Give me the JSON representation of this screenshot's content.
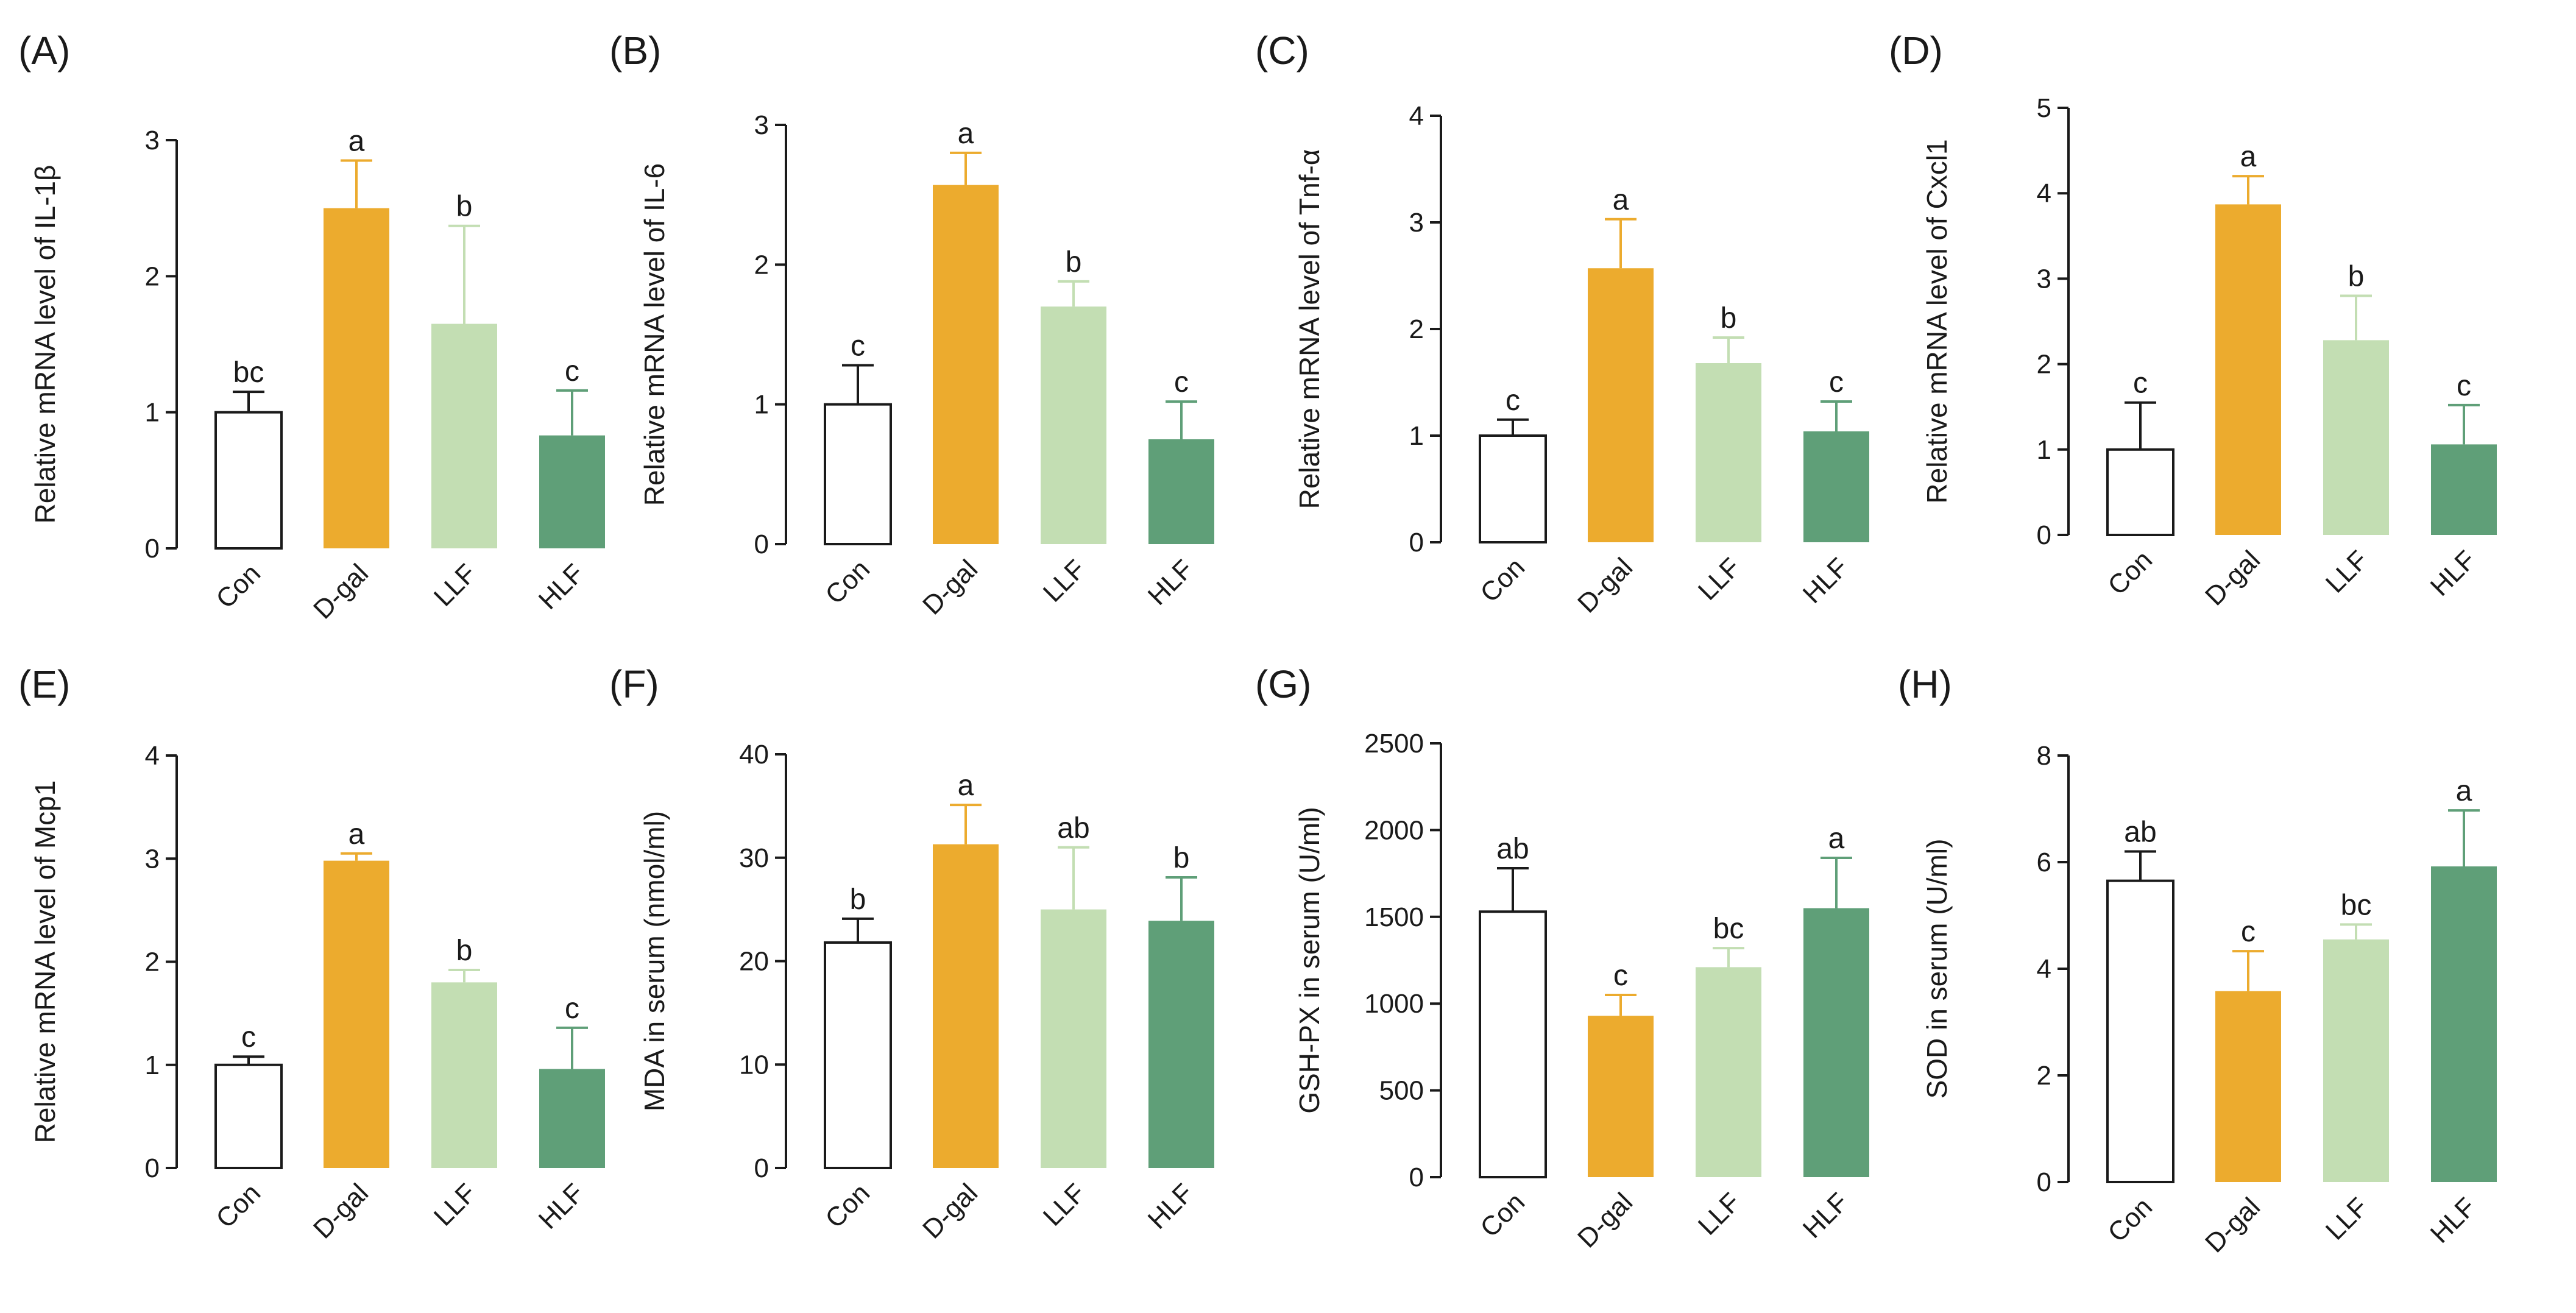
{
  "figure": {
    "colors": {
      "axis": "#1a1a1a"
    }
  },
  "chart_data": [
    {
      "panel_label": "(A)",
      "type": "bar",
      "categories": [
        "Con",
        "D-gal",
        "LLF",
        "HLF"
      ],
      "values": [
        1.0,
        2.5,
        1.65,
        0.83
      ],
      "errors": [
        0.15,
        0.35,
        0.72,
        0.33
      ],
      "sig_letters": [
        "bc",
        "a",
        "b",
        "c"
      ],
      "bar_colors": [
        "#ffffff",
        "#ecab2e",
        "#c3deb3",
        "#5f9f78"
      ],
      "ylabel": "Relative mRNA level of IL-1β",
      "xlabel": "",
      "ylim": [
        0,
        3
      ],
      "yticks": [
        0,
        1,
        2,
        3
      ],
      "grid": false,
      "legend": "none"
    },
    {
      "panel_label": "(B)",
      "type": "bar",
      "categories": [
        "Con",
        "D-gal",
        "LLF",
        "HLF"
      ],
      "values": [
        1.0,
        2.57,
        1.7,
        0.75
      ],
      "errors": [
        0.28,
        0.23,
        0.18,
        0.27
      ],
      "sig_letters": [
        "c",
        "a",
        "b",
        "c"
      ],
      "bar_colors": [
        "#ffffff",
        "#ecab2e",
        "#c3deb3",
        "#5f9f78"
      ],
      "ylabel": "Relative mRNA level of IL-6",
      "xlabel": "",
      "ylim": [
        0,
        3
      ],
      "yticks": [
        0,
        1,
        2,
        3
      ],
      "grid": false,
      "legend": "none"
    },
    {
      "panel_label": "(C)",
      "type": "bar",
      "categories": [
        "Con",
        "D-gal",
        "LLF",
        "HLF"
      ],
      "values": [
        1.0,
        2.57,
        1.68,
        1.04
      ],
      "errors": [
        0.15,
        0.46,
        0.24,
        0.28
      ],
      "sig_letters": [
        "c",
        "a",
        "b",
        "c"
      ],
      "bar_colors": [
        "#ffffff",
        "#ecab2e",
        "#c3deb3",
        "#5f9f78"
      ],
      "ylabel": "Relative mRNA level of Tnf-α",
      "xlabel": "",
      "ylim": [
        0,
        4
      ],
      "yticks": [
        0,
        1,
        2,
        3,
        4
      ],
      "grid": false,
      "legend": "none"
    },
    {
      "panel_label": "(D)",
      "type": "bar",
      "categories": [
        "Con",
        "D-gal",
        "LLF",
        "HLF"
      ],
      "values": [
        1.0,
        3.87,
        2.28,
        1.06
      ],
      "errors": [
        0.55,
        0.33,
        0.52,
        0.46
      ],
      "sig_letters": [
        "c",
        "a",
        "b",
        "c"
      ],
      "bar_colors": [
        "#ffffff",
        "#ecab2e",
        "#c3deb3",
        "#5f9f78"
      ],
      "ylabel": "Relative mRNA level of Cxcl1",
      "xlabel": "",
      "ylim": [
        0,
        5
      ],
      "yticks": [
        0,
        1,
        2,
        3,
        4,
        5
      ],
      "grid": false,
      "legend": "none"
    },
    {
      "panel_label": "(E)",
      "type": "bar",
      "categories": [
        "Con",
        "D-gal",
        "LLF",
        "HLF"
      ],
      "values": [
        1.0,
        2.98,
        1.8,
        0.96
      ],
      "errors": [
        0.08,
        0.07,
        0.12,
        0.4
      ],
      "sig_letters": [
        "c",
        "a",
        "b",
        "c"
      ],
      "bar_colors": [
        "#ffffff",
        "#ecab2e",
        "#c3deb3",
        "#5f9f78"
      ],
      "ylabel": "Relative mRNA level of Mcp1",
      "xlabel": "",
      "ylim": [
        0,
        4
      ],
      "yticks": [
        0,
        1,
        2,
        3,
        4
      ],
      "grid": false,
      "legend": "none"
    },
    {
      "panel_label": "(F)",
      "type": "bar",
      "categories": [
        "Con",
        "D-gal",
        "LLF",
        "HLF"
      ],
      "values": [
        21.8,
        31.3,
        25.0,
        23.9
      ],
      "errors": [
        2.3,
        3.8,
        6.0,
        4.2
      ],
      "sig_letters": [
        "b",
        "a",
        "ab",
        "b"
      ],
      "bar_colors": [
        "#ffffff",
        "#ecab2e",
        "#c3deb3",
        "#5f9f78"
      ],
      "ylabel": "MDA in serum  (nmol/ml)",
      "xlabel": "",
      "ylim": [
        0,
        40
      ],
      "yticks": [
        0,
        10,
        20,
        30,
        40
      ],
      "grid": false,
      "legend": "none"
    },
    {
      "panel_label": "(G)",
      "type": "bar",
      "categories": [
        "Con",
        "D-gal",
        "LLF",
        "HLF"
      ],
      "values": [
        1530,
        930,
        1210,
        1550
      ],
      "errors": [
        250,
        120,
        110,
        290
      ],
      "sig_letters": [
        "ab",
        "c",
        "bc",
        "a"
      ],
      "bar_colors": [
        "#ffffff",
        "#ecab2e",
        "#c3deb3",
        "#5f9f78"
      ],
      "ylabel": "GSH-PX in serum  (U/ml)",
      "xlabel": "",
      "ylim": [
        0,
        2500
      ],
      "yticks": [
        0,
        500,
        1000,
        1500,
        2000,
        2500
      ],
      "grid": false,
      "legend": "none"
    },
    {
      "panel_label": "(H)",
      "type": "bar",
      "categories": [
        "Con",
        "D-gal",
        "LLF",
        "HLF"
      ],
      "values": [
        5.65,
        3.58,
        4.55,
        5.92
      ],
      "errors": [
        0.55,
        0.75,
        0.28,
        1.05
      ],
      "sig_letters": [
        "ab",
        "c",
        "bc",
        "a"
      ],
      "bar_colors": [
        "#ffffff",
        "#ecab2e",
        "#c3deb3",
        "#5f9f78"
      ],
      "ylabel": "SOD in serum  (U/ml)",
      "xlabel": "",
      "ylim": [
        0,
        8
      ],
      "yticks": [
        0,
        2,
        4,
        6,
        8
      ],
      "grid": false,
      "legend": "none"
    }
  ]
}
